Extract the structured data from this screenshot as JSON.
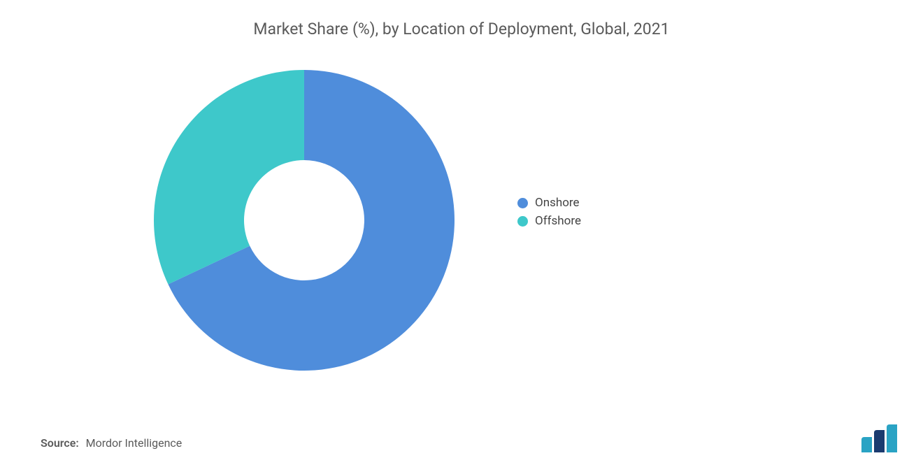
{
  "chart": {
    "type": "donut",
    "title": "Market Share (%), by Location of Deployment, Global, 2021",
    "title_fontsize": 23,
    "title_color": "#5a5a5a",
    "background_color": "#ffffff",
    "inner_radius_ratio": 0.4,
    "start_angle_deg": -90,
    "slices": [
      {
        "label": "Onshore",
        "value": 68,
        "color": "#4f8ddb"
      },
      {
        "label": "Offshore",
        "value": 32,
        "color": "#3ec8ca"
      }
    ],
    "legend": {
      "position": "right",
      "fontsize": 17,
      "text_color": "#444444",
      "swatch_shape": "circle",
      "swatch_size": 15
    }
  },
  "source": {
    "label": "Source:",
    "text": "Mordor Intelligence",
    "fontsize": 16,
    "color": "#5a5a5a"
  },
  "logo": {
    "bars": [
      {
        "color": "#2aa3c4",
        "height_ratio": 0.55
      },
      {
        "color": "#1b3b6f",
        "height_ratio": 0.8
      },
      {
        "color": "#2aa3c4",
        "height_ratio": 1.0
      }
    ]
  }
}
